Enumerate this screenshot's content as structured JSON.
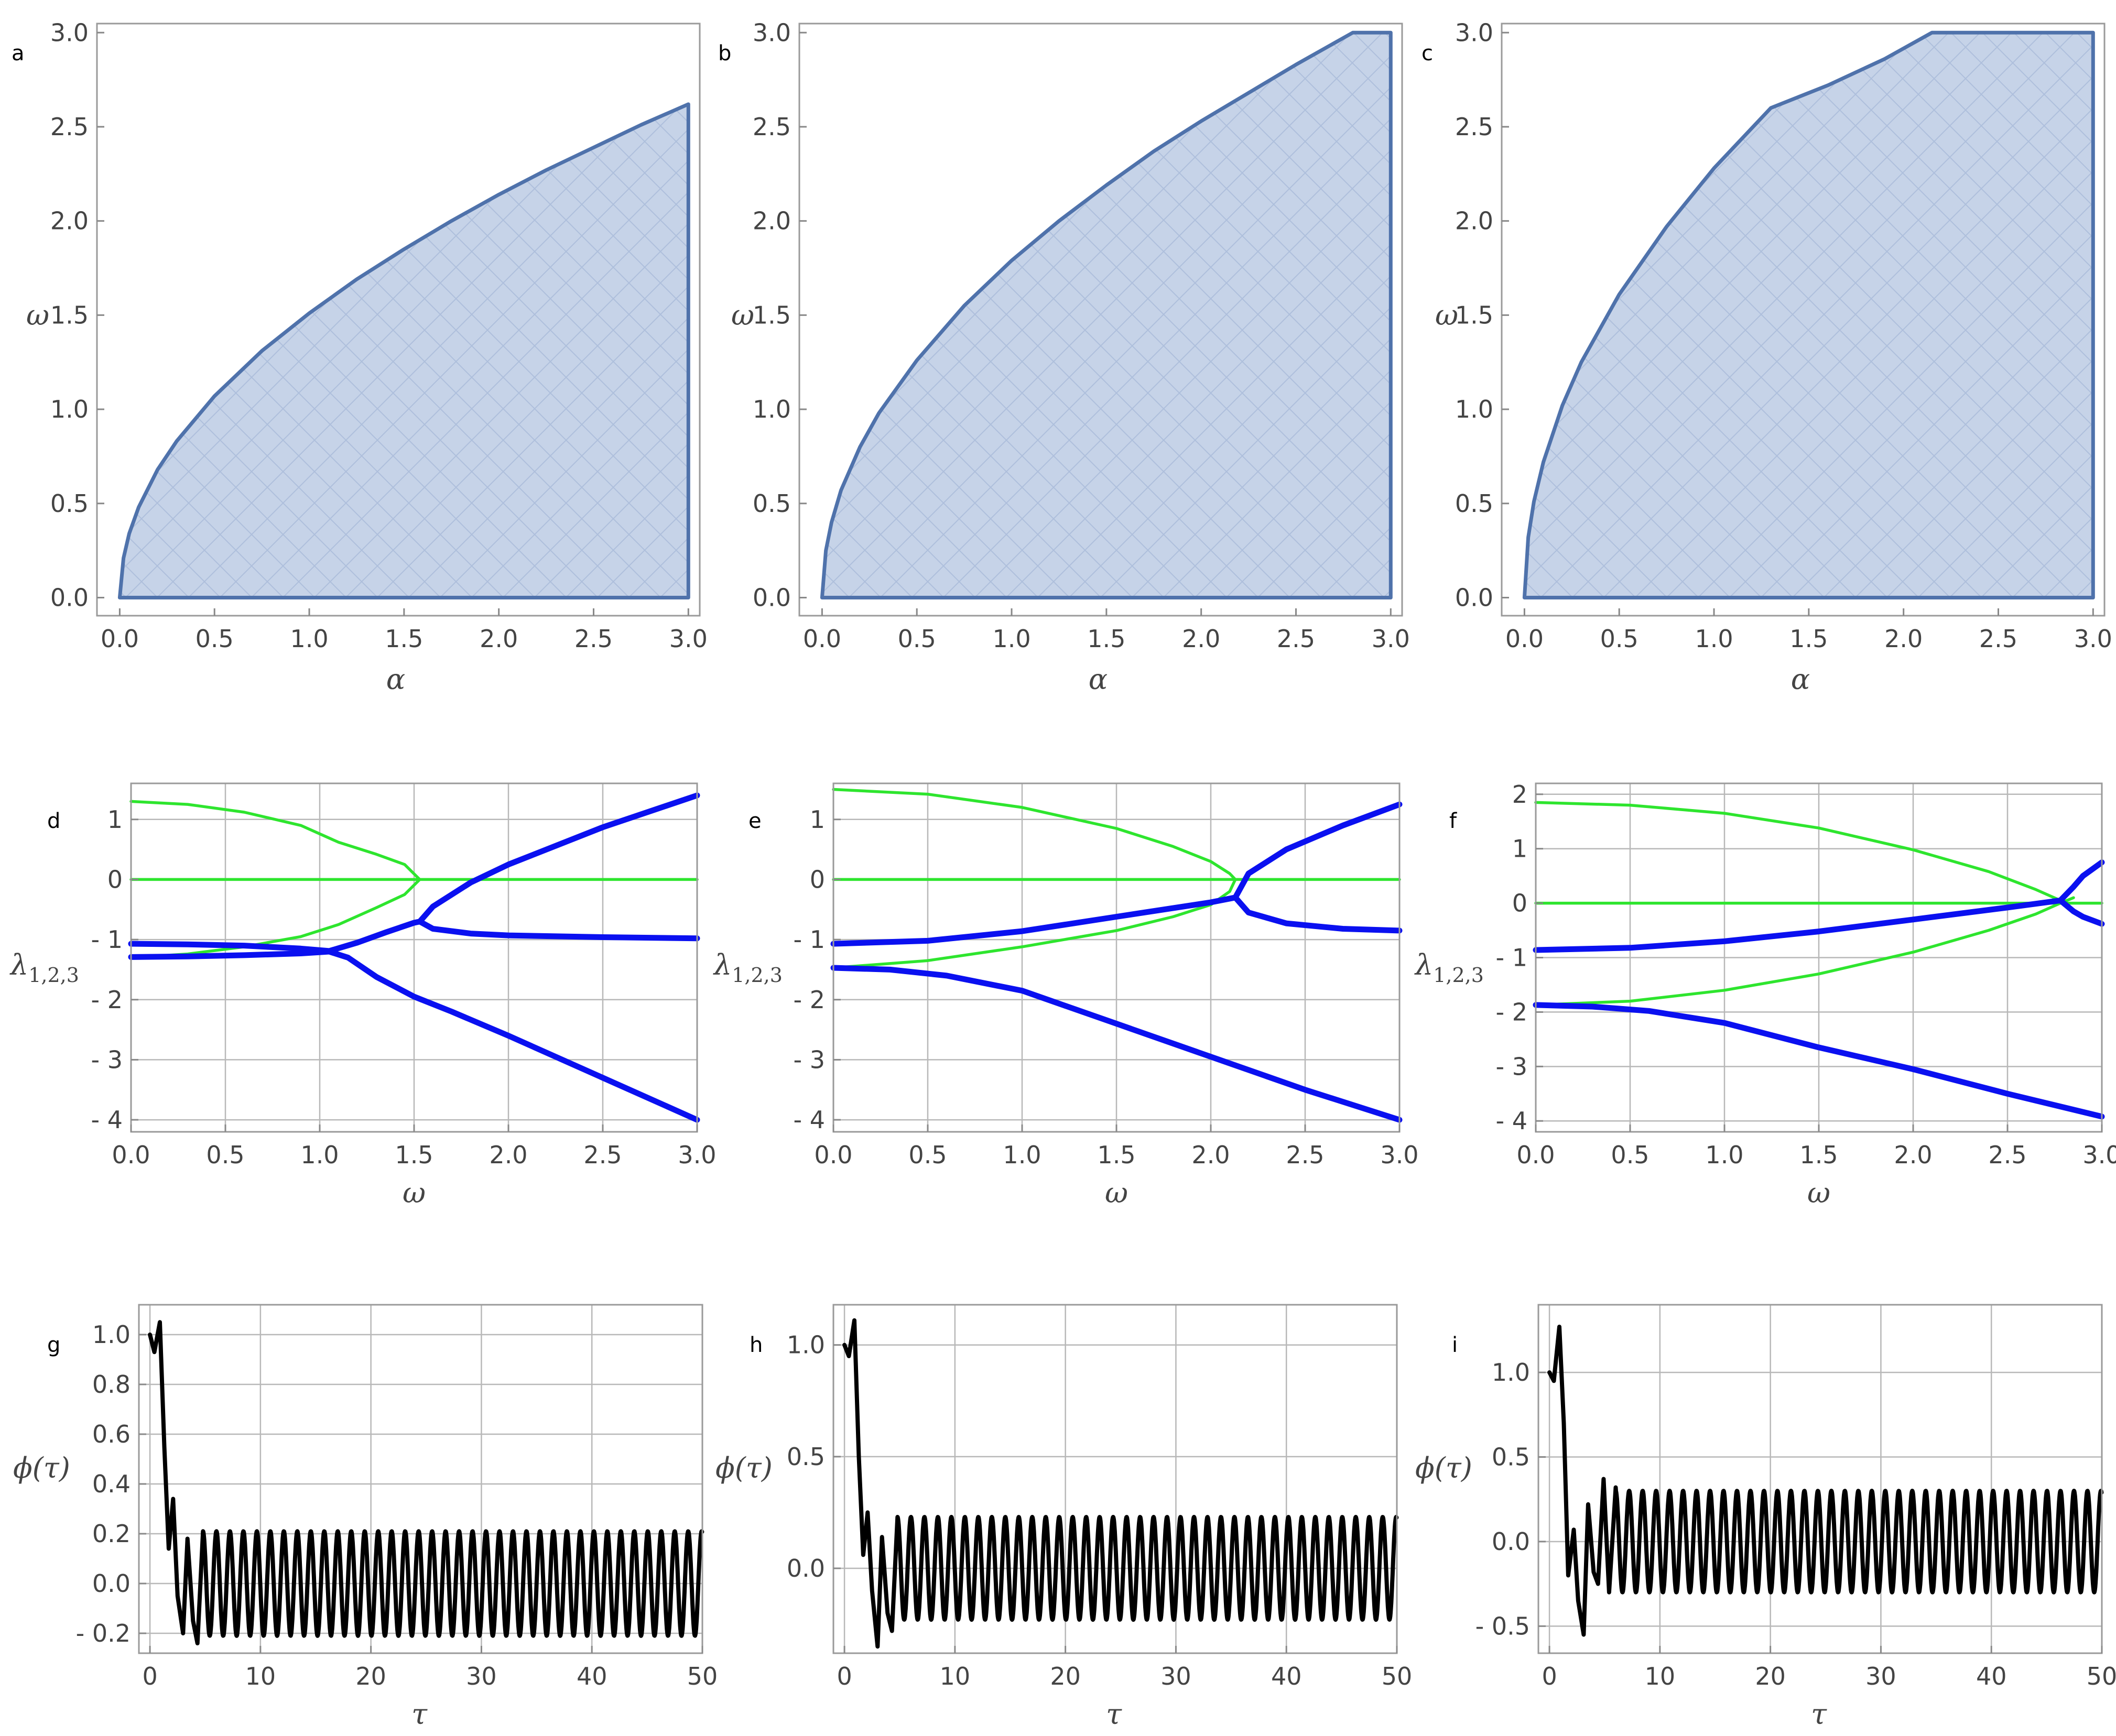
{
  "colors": {
    "region_fill": "#c6d3e8",
    "region_stroke": "#4f72ab",
    "eig_blue": "#0a10f0",
    "eig_green": "#2ee52e",
    "time_series": "#000000",
    "grid": "#b8b8b8",
    "frame": "#9a9a9a"
  },
  "chart_data": [
    {
      "panel": "a",
      "type": "area",
      "xlabel": "α",
      "ylabel": "ω",
      "xlim": [
        0,
        3
      ],
      "ylim": [
        0,
        3
      ],
      "grid": false,
      "x_ticks": [
        "0.0",
        "0.5",
        "1.0",
        "1.5",
        "2.0",
        "2.5",
        "3.0"
      ],
      "y_ticks": [
        "0.0",
        "0.5",
        "1.0",
        "1.5",
        "2.0",
        "2.5",
        "3.0"
      ],
      "boundary": {
        "x": [
          0,
          0.02,
          0.05,
          0.1,
          0.2,
          0.3,
          0.5,
          0.75,
          1.0,
          1.25,
          1.5,
          1.75,
          2.0,
          2.25,
          2.5,
          2.75,
          3.0
        ],
        "y": [
          0,
          0.21,
          0.34,
          0.48,
          0.68,
          0.83,
          1.07,
          1.31,
          1.51,
          1.69,
          1.85,
          2.0,
          2.14,
          2.27,
          2.39,
          2.51,
          2.62
        ]
      }
    },
    {
      "panel": "b",
      "type": "area",
      "xlabel": "α",
      "ylabel": "ω",
      "xlim": [
        0,
        3
      ],
      "ylim": [
        0,
        3
      ],
      "grid": false,
      "x_ticks": [
        "0.0",
        "0.5",
        "1.0",
        "1.5",
        "2.0",
        "2.5",
        "3.0"
      ],
      "y_ticks": [
        "0.0",
        "0.5",
        "1.0",
        "1.5",
        "2.0",
        "2.5",
        "3.0"
      ],
      "boundary": {
        "x": [
          0,
          0.02,
          0.05,
          0.1,
          0.2,
          0.3,
          0.5,
          0.75,
          1.0,
          1.25,
          1.5,
          1.75,
          2.0,
          2.25,
          2.5,
          2.8,
          3.0
        ],
        "y": [
          0,
          0.25,
          0.4,
          0.57,
          0.8,
          0.98,
          1.26,
          1.55,
          1.79,
          2.0,
          2.19,
          2.37,
          2.53,
          2.68,
          2.83,
          3.0,
          3.0
        ]
      }
    },
    {
      "panel": "c",
      "type": "area",
      "xlabel": "α",
      "ylabel": "ω",
      "xlim": [
        0,
        3
      ],
      "ylim": [
        0,
        3
      ],
      "grid": false,
      "x_ticks": [
        "0.0",
        "0.5",
        "1.0",
        "1.5",
        "2.0",
        "2.5",
        "3.0"
      ],
      "y_ticks": [
        "0.0",
        "0.5",
        "1.0",
        "1.5",
        "2.0",
        "2.5",
        "3.0"
      ],
      "boundary": {
        "x": [
          0,
          0.02,
          0.05,
          0.1,
          0.2,
          0.3,
          0.5,
          0.75,
          1.0,
          1.15,
          1.3,
          1.6,
          1.9,
          2.15,
          3.0
        ],
        "y": [
          0,
          0.32,
          0.51,
          0.72,
          1.02,
          1.25,
          1.61,
          1.97,
          2.28,
          2.44,
          2.6,
          2.72,
          2.86,
          3.0,
          3.0
        ]
      }
    },
    {
      "panel": "d",
      "type": "line",
      "xlabel": "ω",
      "ylabel": "λ1,2,3",
      "xlim": [
        0,
        3
      ],
      "ylim": [
        -4.2,
        1.6
      ],
      "grid": true,
      "x_ticks": [
        "0.0",
        "0.5",
        "1.0",
        "1.5",
        "2.0",
        "2.5",
        "3.0"
      ],
      "y_tick_values": [
        1,
        0,
        -1,
        -2,
        -3,
        -4
      ],
      "y_ticks": [
        "1",
        "0",
        "- 1",
        "- 2",
        "- 3",
        "- 4"
      ],
      "series": [
        {
          "color": "green",
          "x": [
            0,
            0.3,
            0.6,
            0.9,
            1.1,
            1.3,
            1.45,
            1.53
          ],
          "y": [
            1.3,
            1.25,
            1.12,
            0.9,
            0.62,
            0.42,
            0.25,
            0
          ]
        },
        {
          "color": "green",
          "x": [
            0,
            3.0
          ],
          "y": [
            0,
            0
          ]
        },
        {
          "color": "green",
          "x": [
            0,
            0.3,
            0.6,
            0.9,
            1.1,
            1.3,
            1.45,
            1.53
          ],
          "y": [
            -1.3,
            -1.24,
            -1.12,
            -0.95,
            -0.75,
            -0.47,
            -0.25,
            0
          ]
        },
        {
          "color": "blue",
          "x": [
            0,
            0.3,
            0.6,
            0.9,
            1.05,
            1.2,
            1.35,
            1.5,
            1.53,
            1.6,
            1.8,
            2.0,
            2.5,
            3.0
          ],
          "y": [
            -1.07,
            -1.08,
            -1.1,
            -1.15,
            -1.19,
            -1.05,
            -0.88,
            -0.72,
            -0.7,
            -0.45,
            -0.05,
            0.25,
            0.87,
            1.4
          ]
        },
        {
          "color": "blue",
          "x": [
            1.53,
            1.6,
            1.8,
            2.0,
            2.5,
            3.0
          ],
          "y": [
            -0.7,
            -0.82,
            -0.9,
            -0.93,
            -0.96,
            -0.98
          ]
        },
        {
          "color": "blue",
          "x": [
            0,
            0.3,
            0.6,
            0.9,
            1.05,
            1.15,
            1.3,
            1.5,
            1.7,
            2.0,
            2.5,
            3.0
          ],
          "y": [
            -1.29,
            -1.28,
            -1.26,
            -1.23,
            -1.2,
            -1.3,
            -1.62,
            -1.95,
            -2.2,
            -2.6,
            -3.3,
            -4.0
          ]
        }
      ]
    },
    {
      "panel": "e",
      "type": "line",
      "xlabel": "ω",
      "ylabel": "λ1,2,3",
      "xlim": [
        0,
        3
      ],
      "ylim": [
        -4.2,
        1.6
      ],
      "grid": true,
      "x_ticks": [
        "0.0",
        "0.5",
        "1.0",
        "1.5",
        "2.0",
        "2.5",
        "3.0"
      ],
      "y_tick_values": [
        1,
        0,
        -1,
        -2,
        -3,
        -4
      ],
      "y_ticks": [
        "1",
        "0",
        "- 1",
        "- 2",
        "- 3",
        "- 4"
      ],
      "series": [
        {
          "color": "green",
          "x": [
            0,
            0.5,
            1.0,
            1.5,
            1.8,
            2.0,
            2.1,
            2.13
          ],
          "y": [
            1.5,
            1.42,
            1.2,
            0.85,
            0.55,
            0.3,
            0.1,
            0
          ]
        },
        {
          "color": "green",
          "x": [
            0,
            3.0
          ],
          "y": [
            0,
            0
          ]
        },
        {
          "color": "green",
          "x": [
            0,
            0.5,
            1.0,
            1.5,
            1.8,
            2.0,
            2.1,
            2.13
          ],
          "y": [
            -1.47,
            -1.35,
            -1.12,
            -0.85,
            -0.62,
            -0.42,
            -0.2,
            0
          ]
        },
        {
          "color": "blue",
          "x": [
            0,
            0.5,
            1.0,
            1.5,
            2.0,
            2.13,
            2.2,
            2.4,
            2.7,
            3.0
          ],
          "y": [
            -1.07,
            -1.02,
            -0.86,
            -0.62,
            -0.38,
            -0.3,
            0.1,
            0.5,
            0.9,
            1.25
          ]
        },
        {
          "color": "blue",
          "x": [
            2.13,
            2.2,
            2.4,
            2.7,
            3.0
          ],
          "y": [
            -0.3,
            -0.55,
            -0.73,
            -0.82,
            -0.85
          ]
        },
        {
          "color": "blue",
          "x": [
            0,
            0.3,
            0.6,
            1.0,
            1.5,
            2.0,
            2.5,
            3.0
          ],
          "y": [
            -1.47,
            -1.5,
            -1.6,
            -1.85,
            -2.4,
            -2.95,
            -3.5,
            -4.0
          ]
        }
      ]
    },
    {
      "panel": "f",
      "type": "line",
      "xlabel": "ω",
      "ylabel": "λ1,2,3",
      "xlim": [
        0,
        3
      ],
      "ylim": [
        -4.2,
        2.2
      ],
      "grid": true,
      "x_ticks": [
        "0.0",
        "0.5",
        "1.0",
        "1.5",
        "2.0",
        "2.5",
        "3.0"
      ],
      "y_tick_values": [
        2,
        1,
        0,
        -1,
        -2,
        -3,
        -4
      ],
      "y_ticks": [
        "2",
        "1",
        "0",
        "- 1",
        "- 2",
        "- 3",
        "- 4"
      ],
      "series": [
        {
          "color": "green",
          "x": [
            0,
            0.5,
            1.0,
            1.5,
            2.0,
            2.4,
            2.65,
            2.78
          ],
          "y": [
            1.85,
            1.8,
            1.65,
            1.38,
            0.98,
            0.58,
            0.25,
            0.05
          ]
        },
        {
          "color": "green",
          "x": [
            0,
            3.0
          ],
          "y": [
            0,
            0
          ]
        },
        {
          "color": "green",
          "x": [
            0,
            0.5,
            1.0,
            1.5,
            2.0,
            2.4,
            2.65,
            2.78,
            2.85
          ],
          "y": [
            -1.87,
            -1.8,
            -1.6,
            -1.3,
            -0.9,
            -0.5,
            -0.2,
            0.0,
            0.1
          ]
        },
        {
          "color": "blue",
          "x": [
            0,
            0.5,
            1.0,
            1.5,
            2.0,
            2.5,
            2.78,
            2.85,
            2.9,
            3.0
          ],
          "y": [
            -0.86,
            -0.82,
            -0.7,
            -0.52,
            -0.3,
            -0.08,
            0.05,
            0.3,
            0.5,
            0.75
          ]
        },
        {
          "color": "blue",
          "x": [
            2.78,
            2.85,
            2.9,
            3.0
          ],
          "y": [
            0.05,
            -0.15,
            -0.25,
            -0.38
          ]
        },
        {
          "color": "blue",
          "x": [
            0,
            0.3,
            0.6,
            1.0,
            1.5,
            2.0,
            2.5,
            3.0
          ],
          "y": [
            -1.87,
            -1.9,
            -1.98,
            -2.2,
            -2.65,
            -3.05,
            -3.5,
            -3.92
          ]
        }
      ]
    },
    {
      "panel": "g",
      "type": "line",
      "xlabel": "τ",
      "ylabel": "ϕ(τ)",
      "xlim": [
        -1,
        50
      ],
      "ylim": [
        -0.28,
        1.12
      ],
      "grid": true,
      "x_ticks": [
        "0",
        "10",
        "20",
        "30",
        "40",
        "50"
      ],
      "y_tick_values": [
        1.0,
        0.8,
        0.6,
        0.4,
        0.2,
        0.0,
        -0.2
      ],
      "y_ticks": [
        "1.0",
        "0.8",
        "0.6",
        "0.4",
        "0.2",
        "0.0",
        "- 0.2"
      ],
      "series": [
        {
          "color": "black",
          "x": [
            0,
            0.4,
            0.9,
            1.3,
            1.7,
            2.1,
            2.5,
            3.0,
            3.4,
            3.9,
            4.3,
            4.8
          ],
          "y": [
            1.0,
            0.93,
            1.05,
            0.55,
            0.14,
            0.34,
            -0.05,
            -0.2,
            0.18,
            -0.15,
            -0.24,
            0.21
          ],
          "steady_amplitude": 0.21,
          "steady_period": 1.22,
          "steady_from": 4.8,
          "x_end": 50
        }
      ]
    },
    {
      "panel": "h",
      "type": "line",
      "xlabel": "τ",
      "ylabel": "ϕ(τ)",
      "xlim": [
        -1,
        50
      ],
      "ylim": [
        -0.38,
        1.18
      ],
      "grid": true,
      "x_ticks": [
        "0",
        "10",
        "20",
        "30",
        "40",
        "50"
      ],
      "y_tick_values": [
        1.0,
        0.5,
        0.0
      ],
      "y_ticks": [
        "1.0",
        "0.5",
        "0.0"
      ],
      "series": [
        {
          "color": "black",
          "x": [
            0,
            0.4,
            0.9,
            1.3,
            1.7,
            2.1,
            2.5,
            3.0,
            3.4,
            3.9,
            4.3,
            4.8
          ],
          "y": [
            1.0,
            0.95,
            1.11,
            0.5,
            0.06,
            0.25,
            -0.1,
            -0.35,
            0.14,
            -0.2,
            -0.28,
            0.23
          ],
          "steady_amplitude": 0.23,
          "steady_period": 1.22,
          "steady_from": 4.8,
          "x_end": 50
        }
      ]
    },
    {
      "panel": "i",
      "type": "line",
      "xlabel": "τ",
      "ylabel": "ϕ(τ)",
      "xlim": [
        -1,
        50
      ],
      "ylim": [
        -0.66,
        1.4
      ],
      "grid": true,
      "x_ticks": [
        "0",
        "10",
        "20",
        "30",
        "40",
        "50"
      ],
      "y_tick_values": [
        1.0,
        0.5,
        0.0,
        -0.5
      ],
      "y_ticks": [
        "1.0",
        "0.5",
        "0.0",
        "- 0.5"
      ],
      "series": [
        {
          "color": "black",
          "x": [
            0,
            0.4,
            0.9,
            1.3,
            1.7,
            2.2,
            2.6,
            3.1,
            3.5,
            4.0,
            4.4,
            4.9,
            5.4,
            6.0
          ],
          "y": [
            1.0,
            0.95,
            1.27,
            0.7,
            -0.2,
            0.07,
            -0.35,
            -0.55,
            0.22,
            -0.18,
            -0.25,
            0.37,
            -0.3,
            0.32
          ],
          "steady_amplitude": 0.3,
          "steady_period": 1.22,
          "steady_from": 6.0,
          "x_end": 50
        }
      ]
    }
  ]
}
